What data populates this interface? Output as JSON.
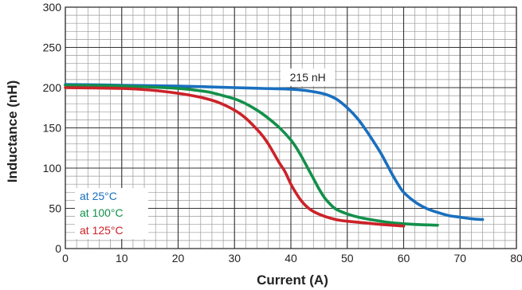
{
  "chart_data": {
    "type": "line",
    "xlabel": "Current (A)",
    "ylabel": "Inductance (nH)",
    "xlim": [
      0,
      80
    ],
    "ylim": [
      0,
      300
    ],
    "x_ticks": [
      "0",
      "10",
      "20",
      "30",
      "40",
      "50",
      "60",
      "70",
      "80"
    ],
    "y_ticks": [
      "0",
      "50",
      "100",
      "150",
      "200",
      "250",
      "300"
    ],
    "grid": true,
    "grid_minor_x": 2,
    "grid_minor_y": 10,
    "legend_position": "bottom-left",
    "annotation": {
      "text": "215 nH",
      "x": 43,
      "y": 208
    },
    "series": [
      {
        "name": "at 25°C",
        "color": "#1a6fbf",
        "points": [
          [
            0,
            204
          ],
          [
            10,
            203
          ],
          [
            20,
            202
          ],
          [
            30,
            200
          ],
          [
            35,
            199
          ],
          [
            40,
            198
          ],
          [
            43,
            196
          ],
          [
            46,
            192
          ],
          [
            48,
            186
          ],
          [
            50,
            175
          ],
          [
            52,
            160
          ],
          [
            54,
            140
          ],
          [
            56,
            118
          ],
          [
            57,
            105
          ],
          [
            58,
            92
          ],
          [
            59,
            80
          ],
          [
            60,
            70
          ],
          [
            62,
            58
          ],
          [
            64,
            50
          ],
          [
            66,
            45
          ],
          [
            68,
            41
          ],
          [
            70,
            39
          ],
          [
            72,
            37
          ],
          [
            74,
            36
          ]
        ]
      },
      {
        "name": "at 100°C",
        "color": "#12904a",
        "points": [
          [
            0,
            203
          ],
          [
            10,
            202
          ],
          [
            20,
            199
          ],
          [
            25,
            195
          ],
          [
            28,
            190
          ],
          [
            30,
            186
          ],
          [
            32,
            180
          ],
          [
            34,
            172
          ],
          [
            36,
            162
          ],
          [
            38,
            150
          ],
          [
            40,
            135
          ],
          [
            41,
            125
          ],
          [
            42,
            113
          ],
          [
            43,
            100
          ],
          [
            44,
            87
          ],
          [
            45,
            74
          ],
          [
            46,
            63
          ],
          [
            47,
            55
          ],
          [
            48,
            49
          ],
          [
            50,
            43
          ],
          [
            52,
            39
          ],
          [
            55,
            35
          ],
          [
            58,
            32
          ],
          [
            62,
            30
          ],
          [
            66,
            29
          ]
        ]
      },
      {
        "name": "at 125°C",
        "color": "#cc2229",
        "points": [
          [
            0,
            200
          ],
          [
            10,
            199
          ],
          [
            15,
            197
          ],
          [
            20,
            193
          ],
          [
            24,
            188
          ],
          [
            27,
            182
          ],
          [
            30,
            172
          ],
          [
            32,
            162
          ],
          [
            34,
            148
          ],
          [
            35,
            140
          ],
          [
            36,
            130
          ],
          [
            37,
            118
          ],
          [
            38,
            106
          ],
          [
            39,
            95
          ],
          [
            40,
            80
          ],
          [
            41,
            68
          ],
          [
            42,
            58
          ],
          [
            43,
            51
          ],
          [
            44,
            46
          ],
          [
            46,
            40
          ],
          [
            48,
            36
          ],
          [
            50,
            34
          ],
          [
            53,
            32
          ],
          [
            56,
            30
          ],
          [
            60,
            28
          ]
        ]
      }
    ]
  }
}
